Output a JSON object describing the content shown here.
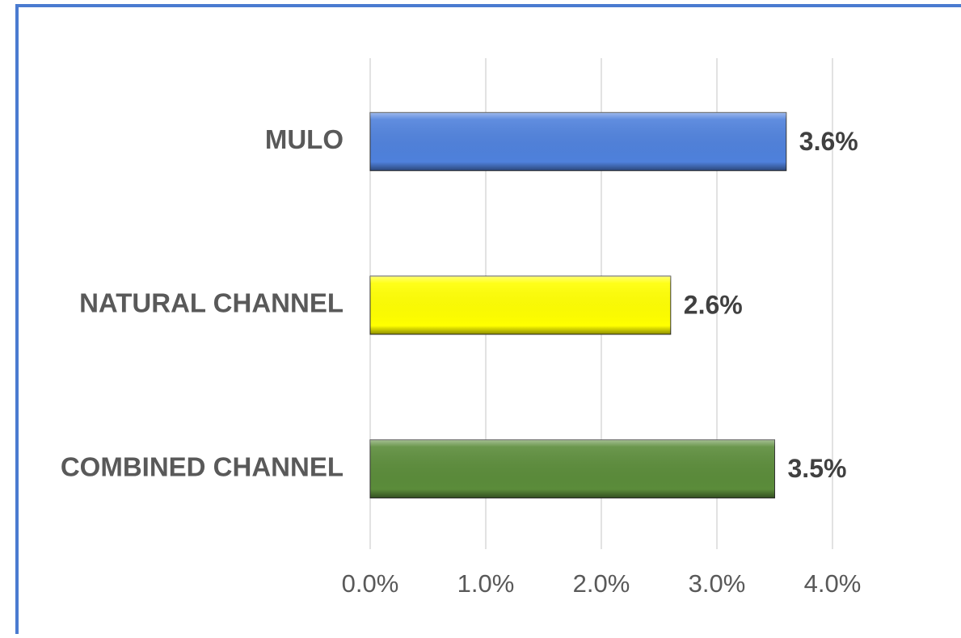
{
  "chart_data": {
    "type": "bar",
    "orientation": "horizontal",
    "categories": [
      "MULO",
      "NATURAL CHANNEL",
      "COMBINED CHANNEL"
    ],
    "values": [
      3.6,
      2.6,
      3.5
    ],
    "value_labels": [
      "3.6%",
      "2.6%",
      "3.5%"
    ],
    "colors": [
      "#4f81dc",
      "#ffff00",
      "#5b8c3a"
    ],
    "xlim": [
      0,
      4
    ],
    "xticks": [
      {
        "value": 0,
        "label": "0.0%"
      },
      {
        "value": 1,
        "label": "1.0%"
      },
      {
        "value": 2,
        "label": "2.0%"
      },
      {
        "value": 3,
        "label": "3.0%"
      },
      {
        "value": 4,
        "label": "4.0%"
      }
    ],
    "grid": true
  }
}
